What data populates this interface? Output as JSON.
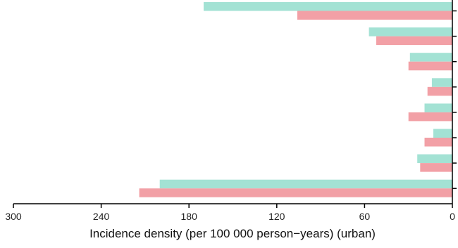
{
  "chart_data": {
    "type": "bar",
    "orientation": "horizontal",
    "x_direction": "reversed",
    "xlabel": "Incidence density (per 100 000 person−years) (urban)",
    "xlim": [
      300,
      0
    ],
    "xticks": [
      "300",
      "240",
      "180",
      "120",
      "60",
      "0"
    ],
    "series": [
      {
        "color": "#a3e2d4",
        "values": [
          170,
          57,
          29,
          14,
          19,
          13,
          24,
          200
        ]
      },
      {
        "color": "#f2a0a6",
        "values": [
          106,
          52,
          30,
          17,
          30,
          19,
          22,
          214
        ]
      }
    ]
  }
}
